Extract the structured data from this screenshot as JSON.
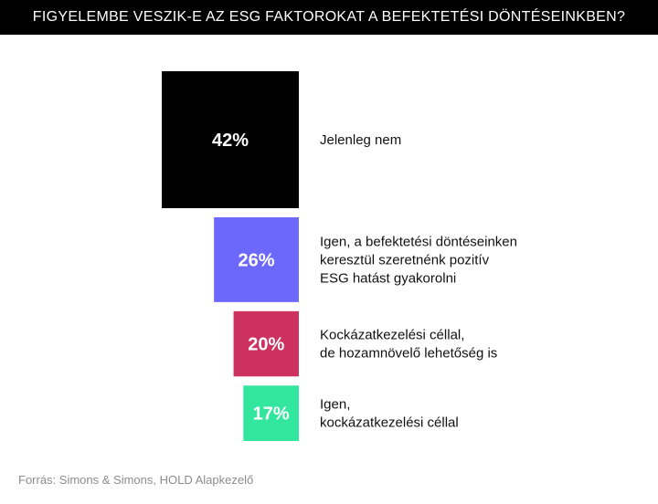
{
  "header": {
    "title": "FIGYELEMBE VESZIK-E AZ ESG FAKTOROKAT A BEFEKTETÉSI DÖNTÉSEINKBEN?"
  },
  "source": "Forrás: Simons & Simons, HOLD Alapkezelő",
  "chart_data": {
    "type": "bar",
    "title": "FIGYELEMBE VESZIK-E AZ ESG FAKTOROKAT A BEFEKTETÉSI DÖNTÉSEINKBEN?",
    "categories": [
      "Jelenleg nem",
      "Igen, a befektetési döntéseinken keresztül szeretnénk pozitív ESG hatást gyakorolni",
      "Kockázatkezelési céllal, de hozamnövelő lehetőség is",
      "Igen, kockázatkezelési céllal"
    ],
    "category_lines": [
      [
        "Jelenleg nem"
      ],
      [
        "Igen, a befektetési döntéseinken",
        "keresztül szeretnénk pozitív",
        "ESG hatást gyakorolni"
      ],
      [
        "Kockázatkezelési céllal,",
        "de hozamnövelő lehetőség is"
      ],
      [
        "Igen,",
        "kockázatkezelési céllal"
      ]
    ],
    "values": [
      42,
      26,
      20,
      17
    ],
    "value_labels": [
      "42%",
      "26%",
      "20%",
      "17%"
    ],
    "colors": [
      "#000000",
      "#6b68fb",
      "#cc3160",
      "#33e69d"
    ],
    "unit": "%"
  }
}
